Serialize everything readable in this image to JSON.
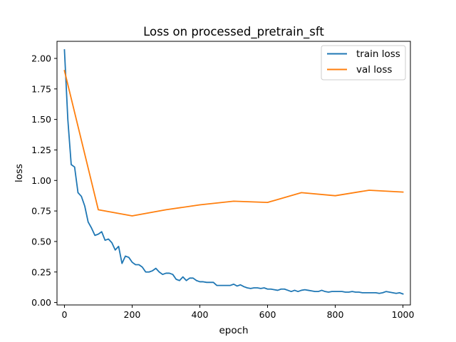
{
  "chart_data": {
    "type": "line",
    "title": "Loss on processed_pretrain_sft",
    "xlabel": "epoch",
    "ylabel": "loss",
    "xlim": [
      -22,
      1022
    ],
    "ylim": [
      -0.02,
      2.14
    ],
    "xticks": [
      0,
      200,
      400,
      600,
      800,
      1000
    ],
    "xtick_labels": [
      "0",
      "200",
      "400",
      "600",
      "800",
      "1000"
    ],
    "yticks": [
      0.0,
      0.25,
      0.5,
      0.75,
      1.0,
      1.25,
      1.5,
      1.75,
      2.0
    ],
    "ytick_labels": [
      "0.00",
      "0.25",
      "0.50",
      "0.75",
      "1.00",
      "1.25",
      "1.50",
      "1.75",
      "2.00"
    ],
    "grid": false,
    "legend_position": "top-right",
    "series": [
      {
        "name": "train loss",
        "color": "#1f77b4",
        "x": [
          0,
          10,
          20,
          30,
          40,
          50,
          60,
          70,
          80,
          90,
          100,
          110,
          120,
          130,
          140,
          150,
          160,
          170,
          180,
          190,
          200,
          210,
          220,
          230,
          240,
          250,
          260,
          270,
          280,
          290,
          300,
          310,
          320,
          330,
          340,
          350,
          360,
          370,
          380,
          390,
          400,
          410,
          420,
          430,
          440,
          450,
          460,
          470,
          480,
          490,
          500,
          510,
          520,
          530,
          540,
          550,
          560,
          570,
          580,
          590,
          600,
          610,
          620,
          630,
          640,
          650,
          660,
          670,
          680,
          690,
          700,
          710,
          720,
          730,
          740,
          750,
          760,
          770,
          780,
          790,
          800,
          810,
          820,
          830,
          840,
          850,
          860,
          870,
          880,
          890,
          900,
          910,
          920,
          930,
          940,
          950,
          960,
          970,
          980,
          990,
          1000
        ],
        "values": [
          2.07,
          1.5,
          1.13,
          1.11,
          0.9,
          0.87,
          0.79,
          0.66,
          0.61,
          0.55,
          0.56,
          0.58,
          0.51,
          0.52,
          0.49,
          0.43,
          0.46,
          0.32,
          0.38,
          0.37,
          0.33,
          0.31,
          0.31,
          0.29,
          0.25,
          0.25,
          0.26,
          0.28,
          0.25,
          0.23,
          0.24,
          0.24,
          0.23,
          0.19,
          0.18,
          0.21,
          0.18,
          0.2,
          0.2,
          0.18,
          0.17,
          0.17,
          0.165,
          0.165,
          0.165,
          0.14,
          0.14,
          0.14,
          0.14,
          0.14,
          0.15,
          0.135,
          0.145,
          0.13,
          0.12,
          0.115,
          0.12,
          0.12,
          0.115,
          0.12,
          0.11,
          0.11,
          0.105,
          0.1,
          0.11,
          0.11,
          0.1,
          0.09,
          0.1,
          0.09,
          0.1,
          0.105,
          0.1,
          0.095,
          0.09,
          0.09,
          0.1,
          0.09,
          0.085,
          0.09,
          0.09,
          0.09,
          0.09,
          0.085,
          0.085,
          0.09,
          0.085,
          0.085,
          0.08,
          0.08,
          0.08,
          0.08,
          0.08,
          0.075,
          0.08,
          0.09,
          0.085,
          0.08,
          0.075,
          0.08,
          0.07
        ]
      },
      {
        "name": "val loss",
        "color": "#ff7f0e",
        "x": [
          0,
          100,
          200,
          300,
          400,
          500,
          600,
          700,
          800,
          900,
          1000
        ],
        "values": [
          1.9,
          0.76,
          0.71,
          0.76,
          0.8,
          0.83,
          0.82,
          0.9,
          0.875,
          0.92,
          0.905
        ]
      }
    ]
  }
}
